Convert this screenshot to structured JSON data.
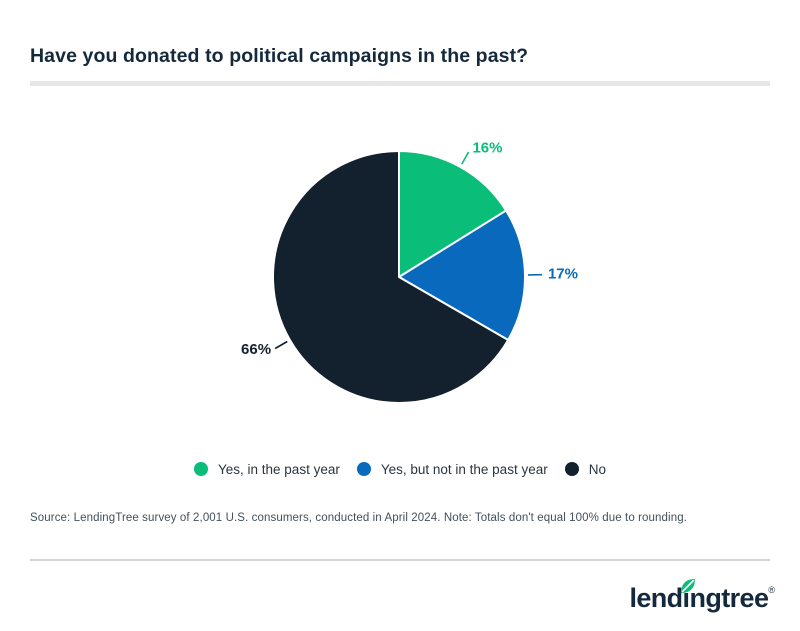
{
  "title": "Have you donated to political campaigns in the past?",
  "chart_data": {
    "type": "pie",
    "title": "Have you donated to political campaigns in the past?",
    "categories": [
      "Yes, in the past year",
      "Yes, but not in the past year",
      "No"
    ],
    "values": [
      16,
      17,
      66
    ],
    "slices": [
      {
        "label": "Yes, in the past year",
        "value": 16,
        "display": "16%",
        "color": "#0abd78"
      },
      {
        "label": "Yes, but not in the past year",
        "value": 17,
        "display": "17%",
        "color": "#0969bc"
      },
      {
        "label": "No",
        "value": 66,
        "display": "66%",
        "color": "#13202e"
      }
    ],
    "start_angle_deg": 0,
    "direction": "clockwise",
    "legend_position": "bottom",
    "note": "Totals don't equal 100% due to rounding"
  },
  "source_note": "Source: LendingTree survey of 2,001 U.S. consumers, conducted in April 2024. Note: Totals don't equal 100% due to rounding.",
  "logo": {
    "text": "lendingtree",
    "registered_mark": "®"
  },
  "colors": {
    "title": "#15293c",
    "green": "#0abd78",
    "blue": "#0969bc",
    "navy": "#13202e",
    "title_divider": "#e7e7e7",
    "footer_divider": "#d6d6d6",
    "source_text": "#44505b",
    "legend_text": "#2a3640",
    "slice_border": "#ffffff"
  }
}
